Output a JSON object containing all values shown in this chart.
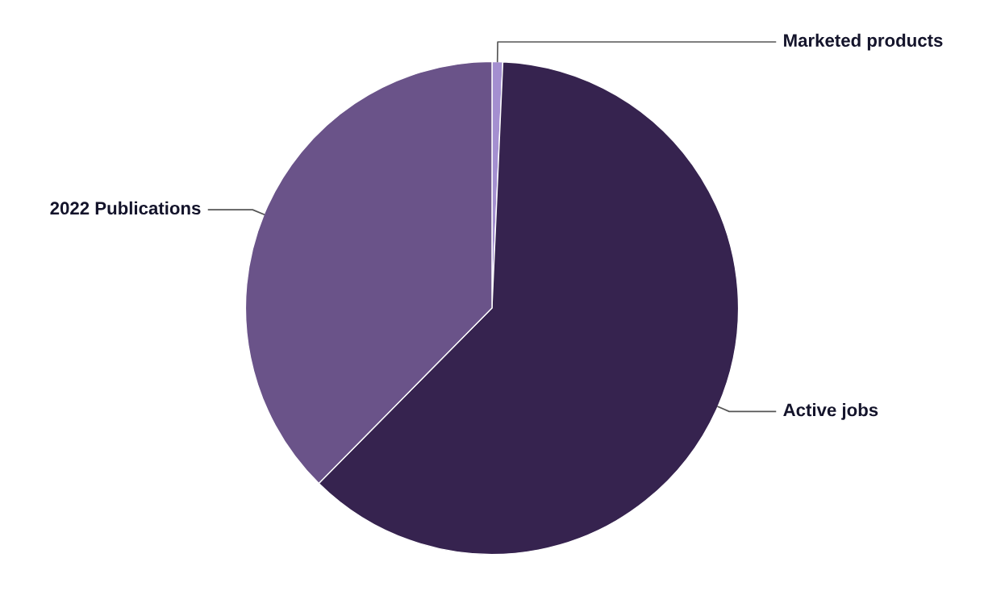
{
  "chart_data": {
    "type": "pie",
    "categories": [
      "Marketed products",
      "Active jobs",
      "2022 Publications"
    ],
    "values": [
      0.7,
      61.7,
      37.6
    ],
    "colors": [
      "#a48fd0",
      "#36234f",
      "#6a5389"
    ]
  }
}
